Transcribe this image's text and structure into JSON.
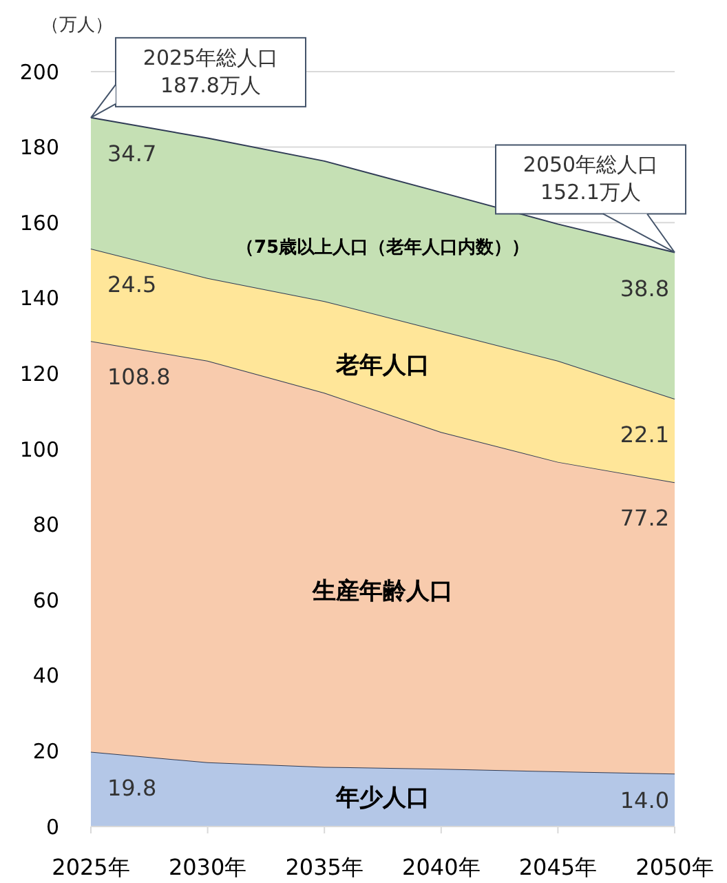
{
  "chart_data": {
    "type": "area",
    "stacked": true,
    "ylabel": "（万人）",
    "categories": [
      "2025年",
      "2030年",
      "2035年",
      "2040年",
      "2045年",
      "2050年"
    ],
    "ylim": [
      0,
      200
    ],
    "yticks": [
      0,
      20,
      40,
      60,
      80,
      100,
      120,
      140,
      160,
      180,
      200
    ],
    "grid": "y",
    "series": [
      {
        "name": "年少人口",
        "color": "#b4c7e7",
        "values": [
          19.8,
          17.0,
          15.8,
          15.3,
          14.6,
          14.0
        ],
        "value_labels": [
          "19.8",
          null,
          null,
          null,
          null,
          "14.0"
        ]
      },
      {
        "name": "生産年齢人口",
        "color": "#f8cbad",
        "values": [
          108.8,
          106.4,
          99.1,
          89.2,
          82.0,
          77.2
        ],
        "value_labels": [
          "108.8",
          null,
          null,
          null,
          null,
          "77.2"
        ]
      },
      {
        "name": "老年人口",
        "color": "#ffe699",
        "values": [
          24.5,
          21.9,
          24.3,
          26.8,
          26.8,
          22.1
        ],
        "value_labels": [
          "24.5",
          null,
          null,
          null,
          null,
          "22.1"
        ]
      },
      {
        "name": "（75歳以上人口（老年人口内数））",
        "color": "#c5e0b4",
        "values": [
          34.7,
          37.1,
          37.1,
          36.7,
          36.2,
          38.8
        ],
        "value_labels": [
          "34.7",
          null,
          null,
          null,
          null,
          "38.8"
        ]
      }
    ],
    "annotations": [
      {
        "text": "2025年総人口\n187.8万人",
        "x": "2025年",
        "y": 187.8
      },
      {
        "text": "2050年総人口\n152.1万人",
        "x": "2050年",
        "y": 152.1
      }
    ]
  }
}
